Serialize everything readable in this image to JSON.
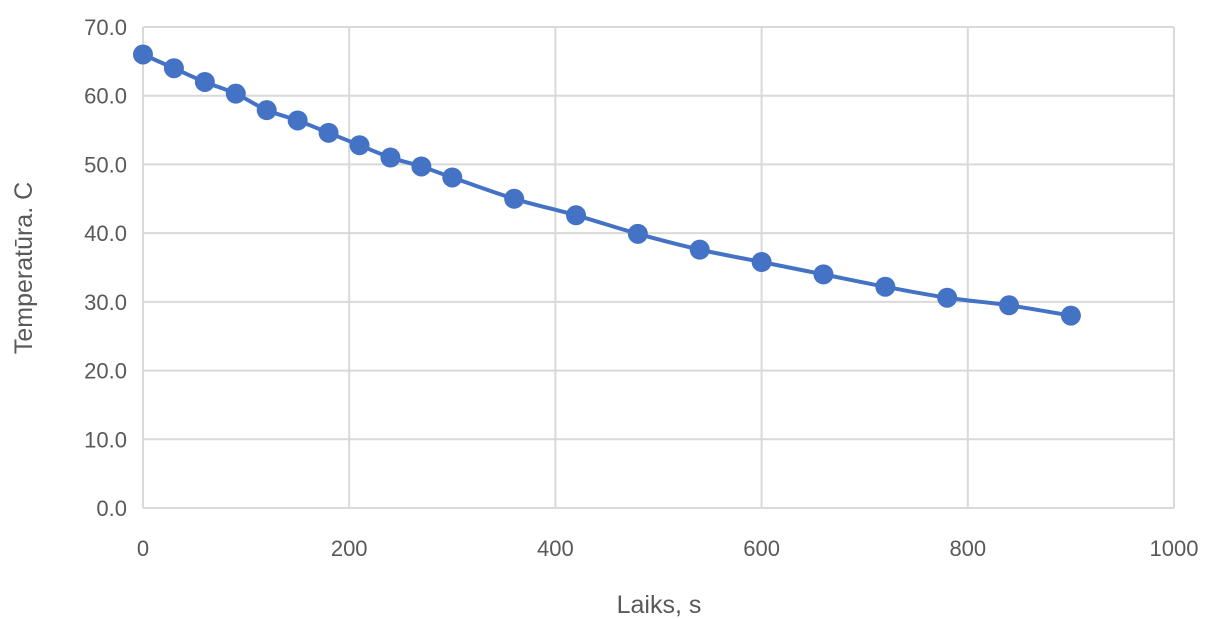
{
  "chart_data": {
    "type": "scatter",
    "title": "",
    "xlabel": "Laiks, s",
    "ylabel": "Temperatūra. C",
    "xlim": [
      0,
      1000
    ],
    "ylim": [
      0,
      70
    ],
    "x_ticks": [
      "0",
      "200",
      "400",
      "600",
      "800",
      "1000"
    ],
    "y_ticks": [
      "0.0",
      "10.0",
      "20.0",
      "30.0",
      "40.0",
      "50.0",
      "60.0",
      "70.0"
    ],
    "grid": true,
    "legend": "none",
    "series_color": "#4472C4",
    "grid_color": "#D9D9D9",
    "marker": "circle",
    "line": "smooth",
    "series": [
      {
        "x": [
          0,
          30,
          60,
          90,
          120,
          150,
          180,
          210,
          240,
          270,
          300,
          360,
          420,
          480,
          540,
          600,
          660,
          720,
          780,
          840,
          900
        ],
        "y": [
          66.0,
          64.0,
          62.0,
          60.3,
          57.9,
          56.4,
          54.6,
          52.8,
          51.0,
          49.7,
          48.1,
          45.0,
          42.6,
          39.9,
          37.6,
          35.8,
          34.0,
          32.2,
          30.6,
          29.5,
          28.0
        ]
      }
    ]
  }
}
